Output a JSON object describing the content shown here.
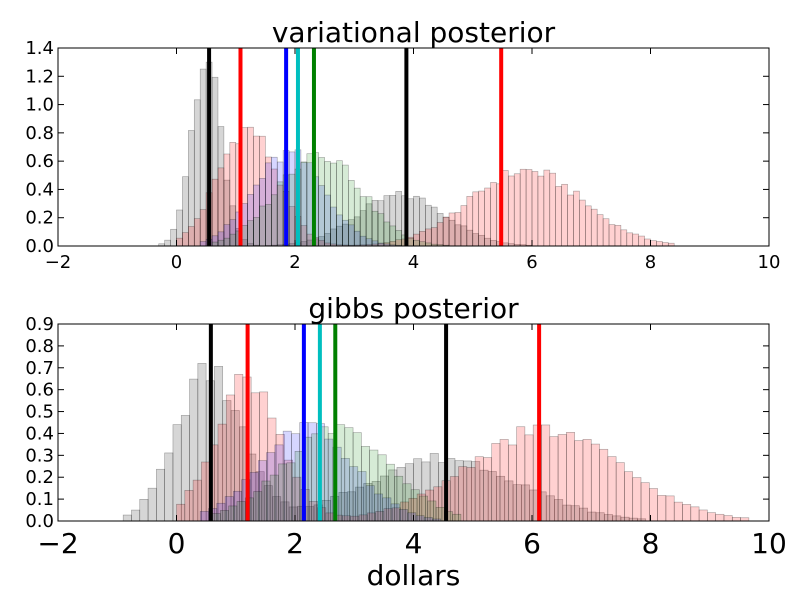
{
  "chart_data": [
    {
      "type": "histogram",
      "title": "variational posterior",
      "xlabel": "",
      "ylabel": "",
      "xlim": [
        -2,
        10
      ],
      "ylim": [
        0,
        1.4
      ],
      "xticks": [
        -2,
        0,
        2,
        4,
        6,
        8,
        10
      ],
      "yticks": [
        0.0,
        0.2,
        0.4,
        0.6,
        0.8,
        1.0,
        1.2,
        1.4
      ],
      "xtick_labels": [
        "−2",
        "0",
        "2",
        "4",
        "6",
        "8",
        "10"
      ],
      "ytick_labels": [
        "0.0",
        "0.2",
        "0.4",
        "0.6",
        "0.8",
        "1.0",
        "1.2",
        "1.4"
      ],
      "grid": false,
      "bin_width": 0.1,
      "series": [
        {
          "color": "#000000",
          "alpha": 0.16,
          "components": [
            {
              "weight": 0.55,
              "mean": 0.5,
              "sd": 0.25
            },
            {
              "weight": 0.45,
              "mean": 3.8,
              "sd": 0.75
            }
          ],
          "xrange": [
            -0.4,
            6.0
          ],
          "ymax_target": 1.3
        },
        {
          "color": "#ff0000",
          "alpha": 0.18,
          "components": [
            {
              "weight": 0.45,
              "mean": 1.2,
              "sd": 0.5
            },
            {
              "weight": 0.55,
              "mean": 5.9,
              "sd": 0.95
            }
          ],
          "xrange": [
            0.0,
            8.3
          ],
          "ymax_target": 0.84
        },
        {
          "color": "#0000ff",
          "alpha": 0.16,
          "components": [
            {
              "weight": 1.0,
              "mean": 1.9,
              "sd": 0.6
            }
          ],
          "xrange": [
            0.4,
            3.8
          ],
          "ymax_target": 0.68
        },
        {
          "color": "#008000",
          "alpha": 0.16,
          "components": [
            {
              "weight": 1.0,
              "mean": 2.4,
              "sd": 0.7
            }
          ],
          "xrange": [
            0.6,
            4.6
          ],
          "ymax_target": 0.66
        }
      ],
      "vlines": [
        {
          "x": 0.55,
          "color": "#000000"
        },
        {
          "x": 1.08,
          "color": "#ff0000"
        },
        {
          "x": 1.85,
          "color": "#0000ff"
        },
        {
          "x": 2.05,
          "color": "#00bfbf"
        },
        {
          "x": 2.32,
          "color": "#008000"
        },
        {
          "x": 3.88,
          "color": "#000000"
        },
        {
          "x": 5.48,
          "color": "#ff0000"
        }
      ]
    },
    {
      "type": "histogram",
      "title": "gibbs posterior",
      "xlabel": "dollars",
      "ylabel": "",
      "xlim": [
        -2,
        10
      ],
      "ylim": [
        0,
        0.9
      ],
      "xticks": [
        -2,
        0,
        2,
        4,
        6,
        8,
        10
      ],
      "yticks": [
        0.0,
        0.1,
        0.2,
        0.3,
        0.4,
        0.5,
        0.6,
        0.7,
        0.8,
        0.9
      ],
      "xtick_labels": [
        "−2",
        "0",
        "2",
        "4",
        "6",
        "8",
        "10"
      ],
      "ytick_labels": [
        "0.0",
        "0.1",
        "0.2",
        "0.3",
        "0.4",
        "0.5",
        "0.6",
        "0.7",
        "0.8",
        "0.9"
      ],
      "grid": false,
      "bin_width": 0.14,
      "series": [
        {
          "color": "#000000",
          "alpha": 0.16,
          "components": [
            {
              "weight": 0.5,
              "mean": 0.55,
              "sd": 0.55
            },
            {
              "weight": 0.5,
              "mean": 4.5,
              "sd": 1.3
            }
          ],
          "xrange": [
            -0.9,
            7.8
          ],
          "ymax_target": 0.72
        },
        {
          "color": "#ff0000",
          "alpha": 0.18,
          "components": [
            {
              "weight": 0.4,
              "mean": 1.2,
              "sd": 0.55
            },
            {
              "weight": 0.6,
              "mean": 6.2,
              "sd": 1.3
            }
          ],
          "xrange": [
            0.0,
            9.6
          ],
          "ymax_target": 0.67
        },
        {
          "color": "#0000ff",
          "alpha": 0.16,
          "components": [
            {
              "weight": 1.0,
              "mean": 2.2,
              "sd": 0.8
            }
          ],
          "xrange": [
            0.4,
            4.4
          ],
          "ymax_target": 0.45
        },
        {
          "color": "#008000",
          "alpha": 0.16,
          "components": [
            {
              "weight": 1.0,
              "mean": 2.7,
              "sd": 0.9
            }
          ],
          "xrange": [
            0.6,
            4.8
          ],
          "ymax_target": 0.44
        }
      ],
      "vlines": [
        {
          "x": 0.58,
          "color": "#000000"
        },
        {
          "x": 1.2,
          "color": "#ff0000"
        },
        {
          "x": 2.15,
          "color": "#0000ff"
        },
        {
          "x": 2.42,
          "color": "#00bfbf"
        },
        {
          "x": 2.68,
          "color": "#008000"
        },
        {
          "x": 4.55,
          "color": "#000000"
        },
        {
          "x": 6.12,
          "color": "#ff0000"
        }
      ]
    }
  ]
}
